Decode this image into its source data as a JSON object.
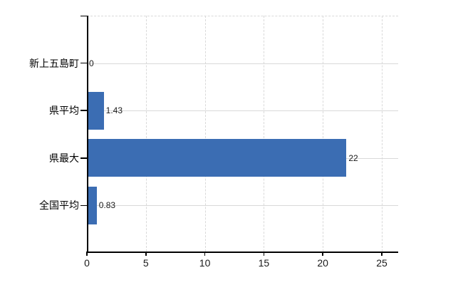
{
  "chart_data": {
    "type": "bar",
    "orientation": "horizontal",
    "title": "",
    "xlabel": "",
    "ylabel": "",
    "categories": [
      "新上五島町",
      "県平均",
      "県最大",
      "全国平均"
    ],
    "values": [
      0,
      1.43,
      22,
      0.83
    ],
    "value_labels": [
      "0",
      "1.43",
      "22",
      "0.83"
    ],
    "x_ticks": [
      0,
      5,
      10,
      15,
      20,
      25
    ],
    "x_tick_labels": [
      "0",
      "5",
      "10",
      "15",
      "20",
      "25"
    ],
    "xlim": [
      0,
      26.4
    ],
    "grid": true,
    "legend": false,
    "colors": {
      "bar": "#3b6db3",
      "grid": "#d9d9d9",
      "axis": "#000000",
      "text": "#1a1a1a",
      "background": "#ffffff"
    }
  }
}
